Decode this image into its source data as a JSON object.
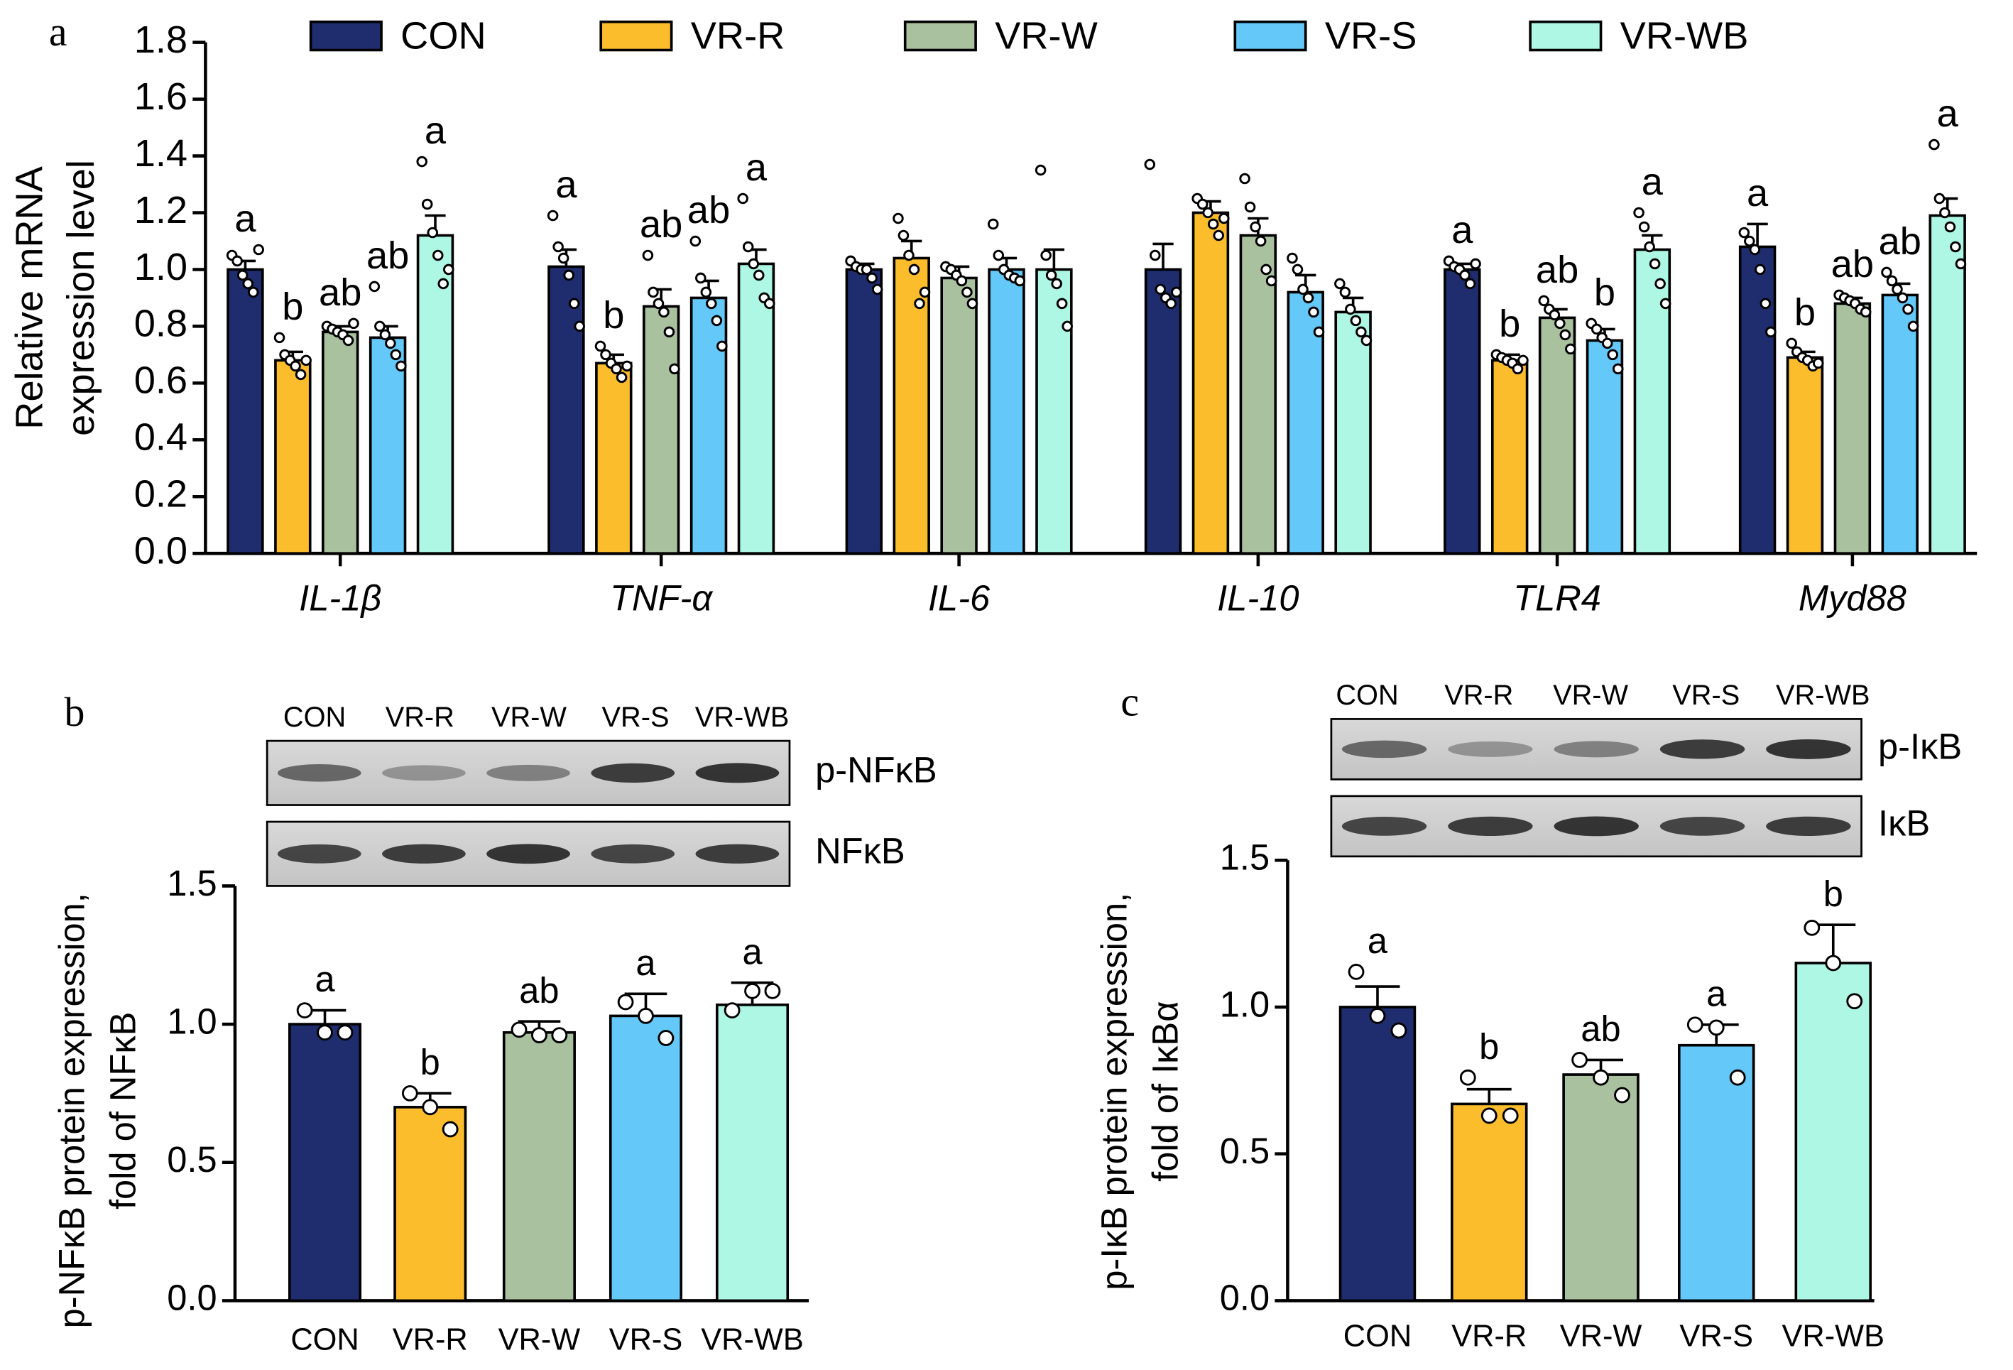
{
  "chart_data": [
    {
      "type": "grouped_bar",
      "panel": "a",
      "y_label": [
        "Relative mRNA",
        "expression level"
      ],
      "categories": [
        "IL-1β",
        "TNF-α",
        "IL-6",
        "IL-10",
        "TLR4",
        "Myd88"
      ],
      "ylim": [
        0,
        1.8
      ],
      "yticks": [
        {
          "value": 0,
          "label": "0.0"
        },
        0.2,
        0.4,
        0.6,
        0.8,
        {
          "value": 1,
          "label": "1.0"
        },
        1.2,
        1.4,
        1.6,
        1.8
      ],
      "series": [
        {
          "name": "CON",
          "color": "#1f2d6e",
          "values": [
            1.0,
            1.01,
            1.0,
            1.0,
            1.0,
            1.08
          ],
          "errors": [
            0.03,
            0.06,
            0.02,
            0.09,
            0.02,
            0.08
          ],
          "letters": [
            "a",
            "a",
            null,
            null,
            "a",
            "a"
          ],
          "points": [
            [
              1.05,
              1.03,
              0.98,
              0.95,
              0.92,
              1.07
            ],
            [
              1.19,
              1.08,
              1.04,
              0.98,
              0.88,
              0.8
            ],
            [
              1.03,
              1.01,
              1.0,
              1.0,
              0.97,
              0.93
            ],
            [
              1.37,
              1.05,
              0.93,
              0.9,
              0.88,
              0.92
            ],
            [
              1.03,
              1.01,
              1.0,
              0.98,
              0.95,
              1.02
            ],
            [
              1.13,
              1.1,
              1.07,
              1.0,
              0.88,
              0.78
            ]
          ]
        },
        {
          "name": "VR-R",
          "color": "#fbbd2c",
          "values": [
            0.68,
            0.67,
            1.04,
            1.2,
            0.68,
            0.69
          ],
          "errors": [
            0.03,
            0.03,
            0.06,
            0.04,
            0.02,
            0.02
          ],
          "letters": [
            "b",
            "b",
            null,
            null,
            "b",
            "b"
          ],
          "points": [
            [
              0.76,
              0.7,
              0.68,
              0.66,
              0.63,
              0.68
            ],
            [
              0.73,
              0.7,
              0.67,
              0.65,
              0.62,
              0.66
            ],
            [
              1.18,
              1.12,
              1.05,
              1.0,
              0.88,
              0.92
            ],
            [
              1.25,
              1.23,
              1.2,
              1.16,
              1.12,
              1.18
            ],
            [
              0.7,
              0.69,
              0.68,
              0.67,
              0.65,
              0.68
            ],
            [
              0.74,
              0.71,
              0.69,
              0.68,
              0.66,
              0.67
            ]
          ]
        },
        {
          "name": "VR-W",
          "color": "#a9c19e",
          "values": [
            0.78,
            0.87,
            0.97,
            1.12,
            0.83,
            0.88
          ],
          "errors": [
            0.02,
            0.06,
            0.04,
            0.06,
            0.03,
            0.02
          ],
          "letters": [
            "ab",
            "ab",
            null,
            null,
            "ab",
            "ab"
          ],
          "points": [
            [
              0.8,
              0.79,
              0.78,
              0.77,
              0.75,
              0.81
            ],
            [
              1.05,
              0.92,
              0.88,
              0.85,
              0.78,
              0.65
            ],
            [
              1.01,
              1.0,
              0.98,
              0.96,
              0.92,
              0.88
            ],
            [
              1.32,
              1.22,
              1.15,
              1.1,
              1.0,
              0.96
            ],
            [
              0.89,
              0.86,
              0.84,
              0.81,
              0.77,
              0.72
            ],
            [
              0.91,
              0.9,
              0.89,
              0.88,
              0.86,
              0.85
            ]
          ]
        },
        {
          "name": "VR-S",
          "color": "#64c8f8",
          "values": [
            0.76,
            0.9,
            1.0,
            0.92,
            0.75,
            0.91
          ],
          "errors": [
            0.04,
            0.06,
            0.04,
            0.06,
            0.04,
            0.04
          ],
          "letters": [
            "ab",
            "ab",
            null,
            null,
            "b",
            "ab"
          ],
          "points": [
            [
              0.94,
              0.8,
              0.77,
              0.74,
              0.7,
              0.66
            ],
            [
              1.1,
              0.97,
              0.92,
              0.88,
              0.82,
              0.73
            ],
            [
              1.16,
              1.05,
              1.0,
              0.98,
              0.97,
              0.96
            ],
            [
              1.04,
              1.0,
              0.93,
              0.9,
              0.85,
              0.78
            ],
            [
              0.81,
              0.79,
              0.76,
              0.74,
              0.7,
              0.65
            ],
            [
              0.99,
              0.96,
              0.93,
              0.9,
              0.86,
              0.8
            ]
          ]
        },
        {
          "name": "VR-WB",
          "color": "#aef7e4",
          "values": [
            1.12,
            1.02,
            1.0,
            0.85,
            1.07,
            1.19
          ],
          "errors": [
            0.07,
            0.05,
            0.07,
            0.05,
            0.05,
            0.06
          ],
          "letters": [
            "a",
            "a",
            null,
            null,
            "a",
            "a"
          ],
          "points": [
            [
              1.38,
              1.23,
              1.13,
              1.05,
              0.95,
              1.0
            ],
            [
              1.25,
              1.08,
              1.02,
              0.98,
              0.9,
              0.88
            ],
            [
              1.35,
              1.05,
              0.98,
              0.95,
              0.88,
              0.8
            ],
            [
              0.95,
              0.92,
              0.86,
              0.82,
              0.78,
              0.75
            ],
            [
              1.2,
              1.15,
              1.08,
              1.02,
              0.95,
              0.88
            ],
            [
              1.44,
              1.25,
              1.2,
              1.15,
              1.08,
              1.02
            ]
          ]
        }
      ]
    },
    {
      "type": "bar",
      "panel": "b",
      "y_label": [
        "p-NFκB protein expression,",
        "fold of NFκB"
      ],
      "blot_labels": [
        "p-NFκB",
        "NFκB"
      ],
      "categories": [
        "CON",
        "VR-R",
        "VR-W",
        "VR-S",
        "VR-WB"
      ],
      "colors": [
        "#1f2d6e",
        "#fbbd2c",
        "#a9c19e",
        "#64c8f8",
        "#aef7e4"
      ],
      "ylim": [
        0,
        1.5
      ],
      "yticks": [
        {
          "value": 0,
          "label": "0.0"
        },
        0.5,
        {
          "value": 1,
          "label": "1.0"
        },
        1.5
      ],
      "values": [
        1.0,
        0.7,
        0.97,
        1.03,
        1.07
      ],
      "errors": [
        0.05,
        0.05,
        0.04,
        0.08,
        0.08
      ],
      "letters": [
        "a",
        "b",
        "ab",
        "a",
        "a"
      ],
      "points": [
        [
          1.05,
          0.97,
          0.97
        ],
        [
          0.75,
          0.7,
          0.62
        ],
        [
          0.98,
          0.96,
          0.96
        ],
        [
          1.08,
          1.03,
          0.95
        ],
        [
          1.05,
          1.12,
          1.12
        ]
      ]
    },
    {
      "type": "bar",
      "panel": "c",
      "y_label": [
        "p-IκB protein expression,",
        "fold of IκBα"
      ],
      "blot_labels": [
        "p-IκB",
        "IκB"
      ],
      "categories": [
        "CON",
        "VR-R",
        "VR-W",
        "VR-S",
        "VR-WB"
      ],
      "colors": [
        "#1f2d6e",
        "#fbbd2c",
        "#a9c19e",
        "#64c8f8",
        "#aef7e4"
      ],
      "ylim": [
        0,
        1.5
      ],
      "yticks": [
        {
          "value": 0,
          "label": "0.0"
        },
        0.5,
        {
          "value": 1,
          "label": "1.0"
        },
        1.5
      ],
      "values": [
        1.0,
        0.67,
        0.77,
        0.87,
        1.15
      ],
      "errors": [
        0.07,
        0.05,
        0.05,
        0.07,
        0.13
      ],
      "letters": [
        "a",
        "b",
        "ab",
        "a",
        "b"
      ],
      "points": [
        [
          1.12,
          0.97,
          0.92
        ],
        [
          0.76,
          0.63,
          0.63
        ],
        [
          0.82,
          0.76,
          0.7
        ],
        [
          0.94,
          0.93,
          0.76
        ],
        [
          1.27,
          1.15,
          1.02
        ]
      ]
    }
  ]
}
